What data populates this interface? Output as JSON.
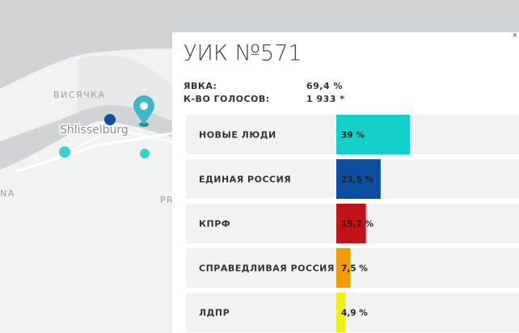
{
  "map": {
    "labels": [
      "ВИСЯЧКА",
      "Shlisselburg",
      "NA",
      "PR"
    ]
  },
  "popup": {
    "title": "УИК №571",
    "close": "×",
    "stats": [
      {
        "label": "ЯВКА:",
        "value": "69,4 %"
      },
      {
        "label": "К-ВО ГОЛОСОВ:",
        "value": "1 933 *"
      }
    ]
  },
  "chart_data": {
    "type": "bar",
    "orientation": "horizontal",
    "categories": [
      "НОВЫЕ ЛЮДИ",
      "ЕДИНАЯ РОССИЯ",
      "КПРФ",
      "СПРАВЕДЛИВАЯ РОССИЯ",
      "ЛДПР"
    ],
    "values": [
      39,
      23.5,
      15.7,
      7.5,
      4.9
    ],
    "value_labels": [
      "39 %",
      "23,5 %",
      "15,7 %",
      "7,5 %",
      "4,9 %"
    ],
    "colors": [
      "#12d1c9",
      "#0a4fa1",
      "#c1111b",
      "#f39c00",
      "#f2ee1c"
    ]
  }
}
